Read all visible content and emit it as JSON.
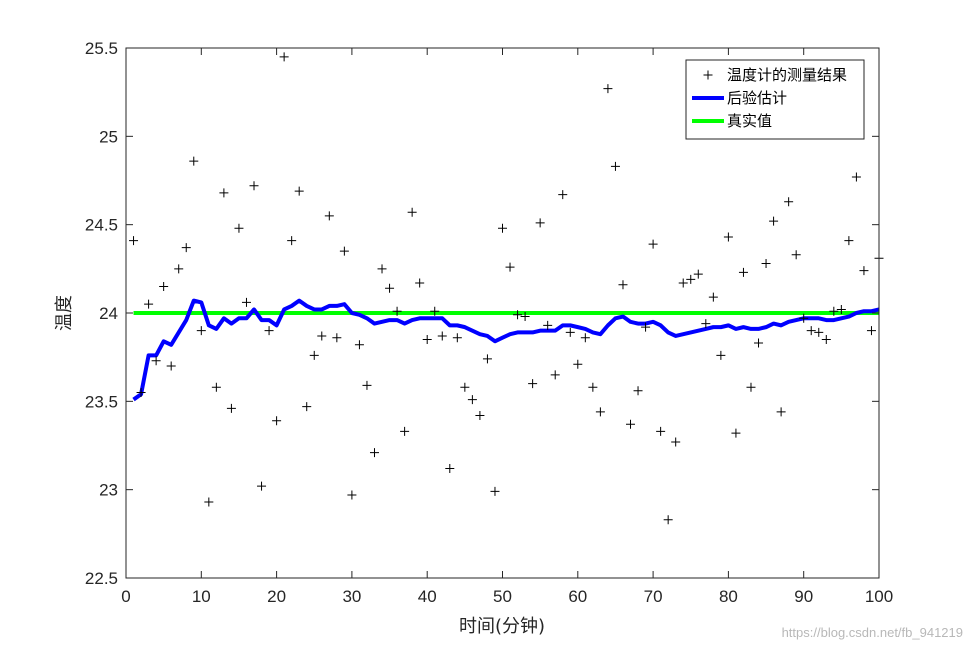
{
  "chart_data": {
    "type": "line",
    "title": "",
    "xlabel": "时间(分钟)",
    "ylabel": "温度",
    "xlim": [
      0,
      100
    ],
    "ylim": [
      22.5,
      25.5
    ],
    "xticks": [
      0,
      10,
      20,
      30,
      40,
      50,
      60,
      70,
      80,
      90,
      100
    ],
    "yticks": [
      22.5,
      23,
      23.5,
      24,
      24.5,
      25,
      25.5
    ],
    "legend_position": "top-right",
    "grid": false,
    "series": [
      {
        "name": "温度计的测量结果",
        "type": "scatter",
        "marker": "+",
        "color": "#000000",
        "x": [
          1,
          2,
          3,
          4,
          5,
          6,
          7,
          8,
          9,
          10,
          11,
          12,
          13,
          14,
          15,
          16,
          17,
          18,
          19,
          20,
          21,
          22,
          23,
          24,
          25,
          26,
          27,
          28,
          29,
          30,
          31,
          32,
          33,
          34,
          35,
          36,
          37,
          38,
          39,
          40,
          41,
          42,
          43,
          44,
          45,
          46,
          47,
          48,
          49,
          50,
          51,
          52,
          53,
          54,
          55,
          56,
          57,
          58,
          59,
          60,
          61,
          62,
          63,
          64,
          65,
          66,
          67,
          68,
          69,
          70,
          71,
          72,
          73,
          74,
          75,
          76,
          77,
          78,
          79,
          80,
          81,
          82,
          83,
          84,
          85,
          86,
          87,
          88,
          89,
          90,
          91,
          92,
          93,
          94,
          95,
          96,
          97,
          98,
          99,
          100
        ],
        "y": [
          24.41,
          23.55,
          24.05,
          23.73,
          24.15,
          23.7,
          24.25,
          24.37,
          24.86,
          23.9,
          22.93,
          23.58,
          24.68,
          23.46,
          24.48,
          24.06,
          24.72,
          23.02,
          23.9,
          23.39,
          25.45,
          24.41,
          24.69,
          23.47,
          23.76,
          23.87,
          24.55,
          23.86,
          24.35,
          22.97,
          23.82,
          23.59,
          23.21,
          24.25,
          24.14,
          24.01,
          23.33,
          24.57,
          24.17,
          23.85,
          24.01,
          23.87,
          23.12,
          23.86,
          23.58,
          23.51,
          23.42,
          23.74,
          22.99,
          24.48,
          24.26,
          23.99,
          23.98,
          23.6,
          24.51,
          23.93,
          23.65,
          24.67,
          23.89,
          23.71,
          23.86,
          23.58,
          23.44,
          25.27,
          24.83,
          24.16,
          23.37,
          23.56,
          23.92,
          24.39,
          23.33,
          22.83,
          23.27,
          24.17,
          24.19,
          24.22,
          23.94,
          24.09,
          23.76,
          24.43,
          23.32,
          24.23,
          23.58,
          23.83,
          24.28,
          24.52,
          23.44,
          24.63,
          24.33,
          23.97,
          23.9,
          23.89,
          23.85,
          24.01,
          24.02,
          24.41,
          24.77,
          24.24,
          23.9,
          24.31
        ]
      },
      {
        "name": "后验估计",
        "type": "line",
        "color": "#0000ff",
        "x": [
          1,
          2,
          3,
          4,
          5,
          6,
          7,
          8,
          9,
          10,
          11,
          12,
          13,
          14,
          15,
          16,
          17,
          18,
          19,
          20,
          21,
          22,
          23,
          24,
          25,
          26,
          27,
          28,
          29,
          30,
          31,
          32,
          33,
          34,
          35,
          36,
          37,
          38,
          39,
          40,
          41,
          42,
          43,
          44,
          45,
          46,
          47,
          48,
          49,
          50,
          51,
          52,
          53,
          54,
          55,
          56,
          57,
          58,
          59,
          60,
          61,
          62,
          63,
          64,
          65,
          66,
          67,
          68,
          69,
          70,
          71,
          72,
          73,
          74,
          75,
          76,
          77,
          78,
          79,
          80,
          81,
          82,
          83,
          84,
          85,
          86,
          87,
          88,
          89,
          90,
          91,
          92,
          93,
          94,
          95,
          96,
          97,
          98,
          99,
          100
        ],
        "y": [
          23.51,
          23.54,
          23.76,
          23.76,
          23.84,
          23.82,
          23.89,
          23.96,
          24.07,
          24.06,
          23.93,
          23.91,
          23.97,
          23.94,
          23.97,
          23.97,
          24.02,
          23.96,
          23.96,
          23.93,
          24.02,
          24.04,
          24.07,
          24.04,
          24.02,
          24.02,
          24.04,
          24.04,
          24.05,
          24.0,
          23.99,
          23.97,
          23.94,
          23.95,
          23.96,
          23.96,
          23.94,
          23.96,
          23.97,
          23.97,
          23.97,
          23.97,
          23.93,
          23.93,
          23.92,
          23.9,
          23.88,
          23.87,
          23.84,
          23.86,
          23.88,
          23.89,
          23.89,
          23.89,
          23.9,
          23.9,
          23.9,
          23.93,
          23.93,
          23.92,
          23.91,
          23.89,
          23.88,
          23.93,
          23.97,
          23.98,
          23.95,
          23.94,
          23.94,
          23.95,
          23.93,
          23.89,
          23.87,
          23.88,
          23.89,
          23.9,
          23.91,
          23.92,
          23.92,
          23.93,
          23.91,
          23.92,
          23.91,
          23.91,
          23.92,
          23.94,
          23.93,
          23.95,
          23.96,
          23.97,
          23.97,
          23.97,
          23.96,
          23.96,
          23.97,
          23.98,
          24.0,
          24.01,
          24.01,
          24.02
        ]
      },
      {
        "name": "真实值",
        "type": "line",
        "color": "#00ff00",
        "x": [
          1,
          100
        ],
        "y": [
          24.0,
          24.0
        ]
      }
    ]
  },
  "watermark": "https://blog.csdn.net/fb_941219"
}
